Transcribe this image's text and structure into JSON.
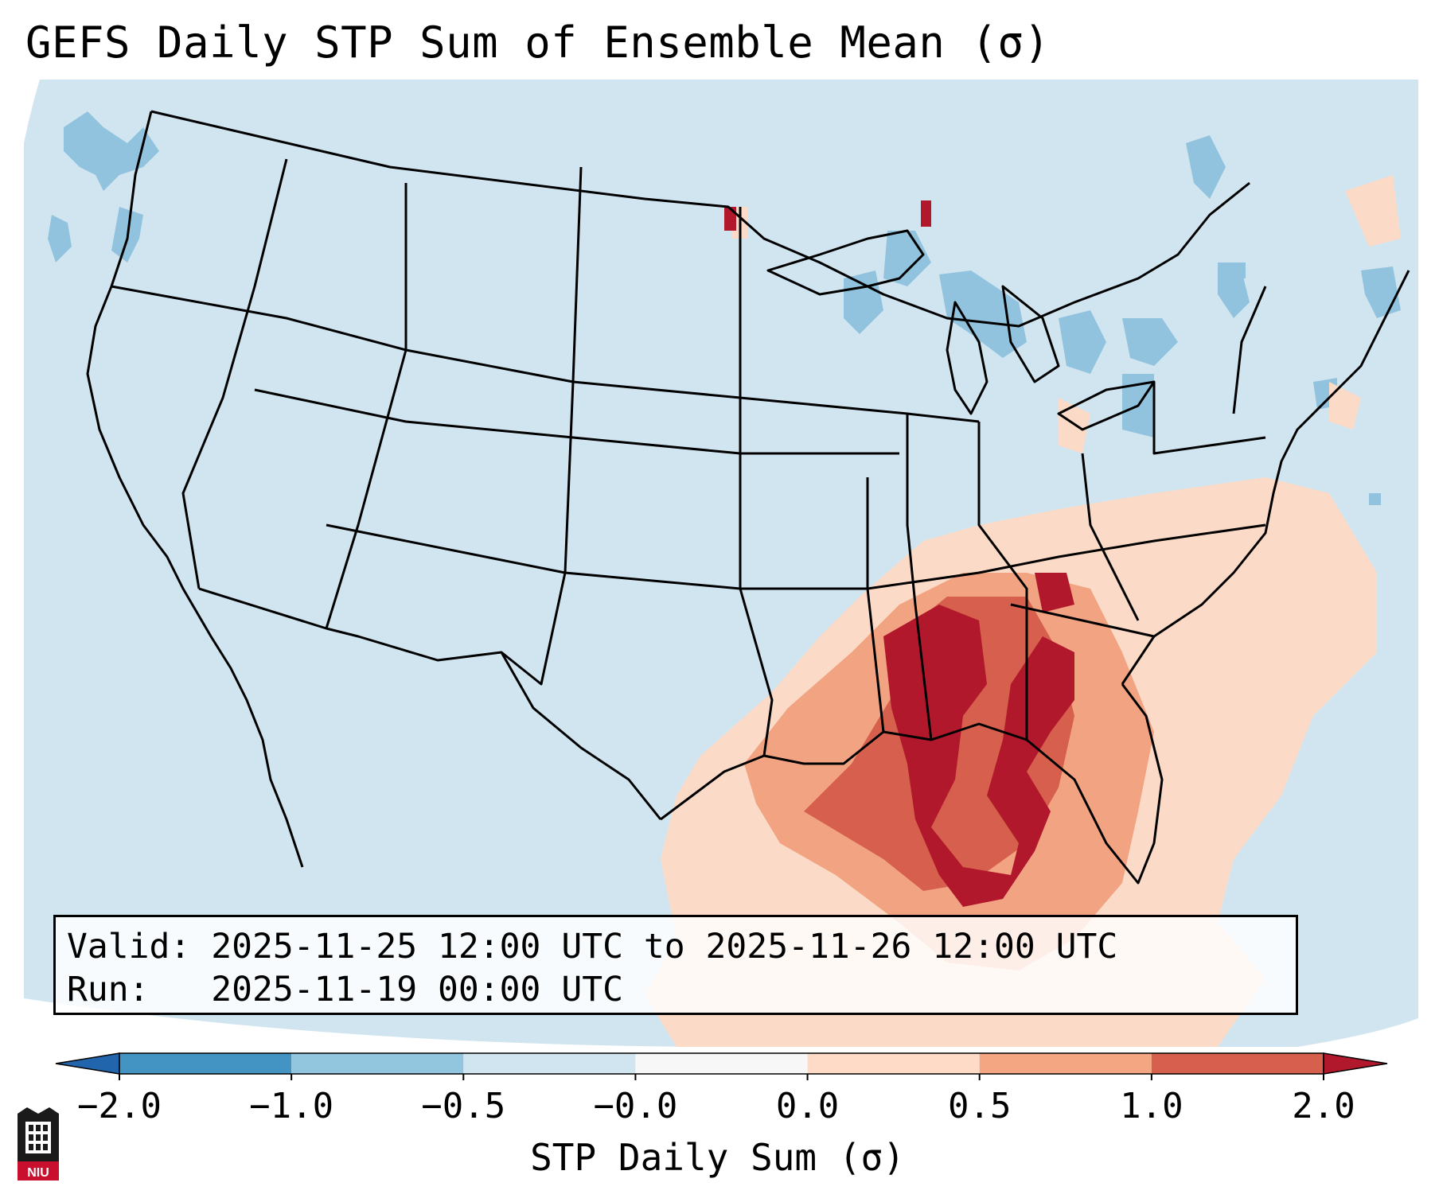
{
  "title": "GEFS Daily STP Sum of Ensemble Mean (σ)",
  "info": {
    "valid_line": "Valid: 2025-11-25 12:00 UTC to 2025-11-26 12:00 UTC",
    "run_line": "Run:   2025-11-19 00:00 UTC"
  },
  "colorbar": {
    "label": "STP Daily Sum (σ)",
    "ticks": [
      "−2.0",
      "−1.0",
      "−0.5",
      "−0.0",
      "0.0",
      "0.5",
      "1.0",
      "2.0"
    ],
    "colors": [
      "#3f88c0",
      "#91c3de",
      "#d1e5f0",
      "#f7f7f7",
      "#fbdbc7",
      "#f2a381",
      "#d6604d",
      "#b2182b"
    ]
  },
  "logo": {
    "text": "NIU"
  },
  "map_colors": {
    "background": "#d1e5f0",
    "ocean_outside": "#ffffff",
    "borders": "#000000"
  }
}
